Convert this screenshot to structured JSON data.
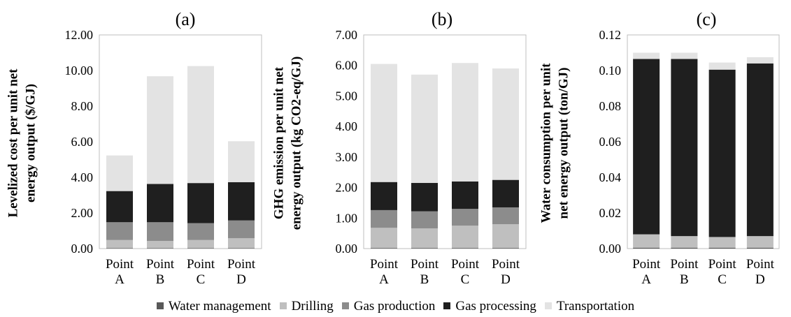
{
  "legend": [
    "Water management",
    "Drilling",
    "Gas production",
    "Gas processing",
    "Transportation"
  ],
  "colors": {
    "Water management": "#595959",
    "Drilling": "#bfbfbf",
    "Gas production": "#8c8c8c",
    "Gas processing": "#1f1f1f",
    "Transportation": "#e3e3e3"
  },
  "chart_data": [
    {
      "type": "bar",
      "stacked": true,
      "panel_label": "(a)",
      "ylabel_lines": [
        "Levelized cost per unit net",
        "energy output ($/GJ)"
      ],
      "categories": [
        [
          "Point",
          "A"
        ],
        [
          "Point",
          "B"
        ],
        [
          "Point",
          "C"
        ],
        [
          "Point",
          "D"
        ]
      ],
      "ylim": [
        0,
        12
      ],
      "yticks": [
        "0.00",
        "2.00",
        "4.00",
        "6.00",
        "8.00",
        "10.00",
        "12.00"
      ],
      "series": [
        {
          "name": "Water management",
          "values": [
            0.03,
            0.03,
            0.03,
            0.03
          ]
        },
        {
          "name": "Drilling",
          "values": [
            0.45,
            0.4,
            0.45,
            0.55
          ]
        },
        {
          "name": "Gas production",
          "values": [
            1.0,
            1.05,
            0.95,
            1.0
          ]
        },
        {
          "name": "Gas processing",
          "values": [
            1.75,
            2.15,
            2.25,
            2.15
          ]
        },
        {
          "name": "Transportation",
          "values": [
            2.0,
            6.05,
            6.57,
            2.3
          ]
        }
      ]
    },
    {
      "type": "bar",
      "stacked": true,
      "panel_label": "(b)",
      "ylabel_lines": [
        "GHG emission per unit net",
        "energy output (kg CO2-eq/GJ)"
      ],
      "categories": [
        [
          "Point",
          "A"
        ],
        [
          "Point",
          "B"
        ],
        [
          "Point",
          "C"
        ],
        [
          "Point",
          "D"
        ]
      ],
      "ylim": [
        0,
        7
      ],
      "yticks": [
        "0.00",
        "1.00",
        "2.00",
        "3.00",
        "4.00",
        "5.00",
        "6.00",
        "7.00"
      ],
      "series": [
        {
          "name": "Water management",
          "values": [
            0.02,
            0.02,
            0.02,
            0.02
          ]
        },
        {
          "name": "Drilling",
          "values": [
            0.66,
            0.64,
            0.73,
            0.78
          ]
        },
        {
          "name": "Gas production",
          "values": [
            0.58,
            0.56,
            0.55,
            0.55
          ]
        },
        {
          "name": "Gas processing",
          "values": [
            0.92,
            0.93,
            0.9,
            0.9
          ]
        },
        {
          "name": "Transportation",
          "values": [
            3.87,
            3.55,
            3.88,
            3.65
          ]
        }
      ]
    },
    {
      "type": "bar",
      "stacked": true,
      "panel_label": "(c)",
      "ylabel_lines": [
        "Water consumption per unit",
        "net energy output (ton/GJ)"
      ],
      "categories": [
        [
          "Point",
          "A"
        ],
        [
          "Point",
          "B"
        ],
        [
          "Point",
          "C"
        ],
        [
          "Point",
          "D"
        ]
      ],
      "ylim": [
        0,
        0.12
      ],
      "yticks": [
        "0.00",
        "0.02",
        "0.04",
        "0.06",
        "0.08",
        "0.10",
        "0.12"
      ],
      "series": [
        {
          "name": "Water management",
          "values": [
            0.0005,
            0.0005,
            0.0005,
            0.0005
          ]
        },
        {
          "name": "Drilling",
          "values": [
            0.0075,
            0.0065,
            0.006,
            0.0065
          ]
        },
        {
          "name": "Gas production",
          "values": [
            0.0,
            0.0,
            0.0,
            0.0
          ]
        },
        {
          "name": "Gas processing",
          "values": [
            0.0985,
            0.0995,
            0.094,
            0.097
          ]
        },
        {
          "name": "Transportation",
          "values": [
            0.0035,
            0.0035,
            0.004,
            0.0035
          ]
        }
      ]
    }
  ]
}
